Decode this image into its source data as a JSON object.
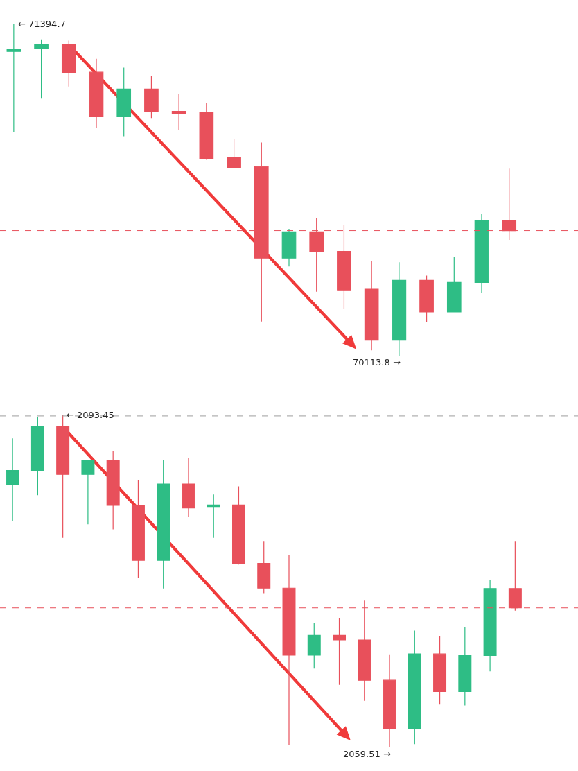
{
  "chart_data": [
    {
      "type": "candlestick",
      "categories": [
        null,
        null,
        null,
        null,
        null,
        null,
        null,
        null,
        null,
        null,
        null,
        null,
        null,
        null,
        null,
        null,
        null,
        null,
        null
      ],
      "ohlc": [
        [
          71288,
          71394.7,
          70976,
          71296
        ],
        [
          71299,
          71335,
          71106,
          71314
        ],
        [
          71314,
          71330,
          71153,
          71205
        ],
        [
          71208,
          71260,
          70992,
          71036
        ],
        [
          71036,
          71226,
          70961,
          71143
        ],
        [
          71143,
          71195,
          71031,
          71057
        ],
        [
          71057,
          71124,
          70984,
          71049
        ],
        [
          71052,
          71091,
          70870,
          70875
        ],
        [
          70878,
          70950,
          70841,
          70841
        ],
        [
          70844,
          70937,
          70246,
          70491
        ],
        [
          70491,
          70602,
          70459,
          70592
        ],
        [
          70592,
          70644,
          70361,
          70517
        ],
        [
          70517,
          70620,
          70296,
          70368
        ],
        [
          70371,
          70478,
          70135,
          70174
        ],
        [
          70174,
          70475,
          70113.8,
          70405
        ],
        [
          70405,
          70423,
          70244,
          70283
        ],
        [
          70283,
          70496,
          70283,
          70397
        ],
        [
          70397,
          70662,
          70358,
          70636
        ],
        [
          70636,
          70836,
          70561,
          70597
        ]
      ],
      "colors": [
        "#2ebd85",
        "#2ebd85",
        "#e8505b",
        "#e8505b",
        "#2ebd85",
        "#e8505b",
        "#e8505b",
        "#e8505b",
        "#e8505b",
        "#e8505b",
        "#2ebd85",
        "#e8505b",
        "#e8505b",
        "#e8505b",
        "#2ebd85",
        "#e8505b",
        "#2ebd85",
        "#2ebd85",
        "#e8505b"
      ],
      "annotations": [
        "← 71394.7",
        "70113.8 →"
      ],
      "ref_lines": [
        {
          "axis": "y",
          "value": 70597,
          "color": "#e8505b",
          "line_style": "dashed"
        }
      ],
      "tick_labels": false
    },
    {
      "type": "candlestick",
      "categories": [
        null,
        null,
        null,
        null,
        null,
        null,
        null,
        null,
        null,
        null,
        null,
        null,
        null,
        null,
        null,
        null,
        null,
        null,
        null,
        null,
        null
      ],
      "ohlc": [
        [
          2086.33,
          2091.08,
          2082.65,
          2087.79
        ],
        [
          2087.79,
          2093.25,
          2085.26,
          2092.26
        ],
        [
          2092.26,
          2093.45,
          2080.91,
          2087.4
        ],
        [
          2087.4,
          2088.78,
          2082.29,
          2088.78
        ],
        [
          2088.78,
          2089.77,
          2081.78,
          2084.23
        ],
        [
          2084.23,
          2086.84,
          2076.84,
          2078.62
        ],
        [
          2078.62,
          2088.9,
          2075.73,
          2086.41
        ],
        [
          2086.41,
          2089.1,
          2083.09,
          2083.96
        ],
        [
          2084.11,
          2085.34,
          2080.91,
          2084.27
        ],
        [
          2084.27,
          2086.17,
          2078.18,
          2078.26
        ],
        [
          2078.3,
          2080.59,
          2075.25,
          2075.77
        ],
        [
          2075.77,
          2079.13,
          2059.71,
          2068.92
        ],
        [
          2068.92,
          2072.21,
          2067.54,
          2070.94
        ],
        [
          2070.94,
          2072.68,
          2065.88,
          2070.47
        ],
        [
          2070.47,
          2074.5,
          2064.26,
          2066.35
        ],
        [
          2066.35,
          2069.0,
          2059.51,
          2061.37
        ],
        [
          2061.37,
          2071.42,
          2059.83,
          2069.04
        ],
        [
          2069.04,
          2070.82,
          2063.86,
          2065.2
        ],
        [
          2065.2,
          2071.81,
          2063.78,
          2068.88
        ],
        [
          2068.88,
          2076.56,
          2067.26,
          2075.73
        ],
        [
          2075.73,
          2080.59,
          2073.47,
          2073.75
        ]
      ],
      "colors": [
        "#2ebd85",
        "#2ebd85",
        "#e8505b",
        "#2ebd85",
        "#e8505b",
        "#e8505b",
        "#2ebd85",
        "#e8505b",
        "#2ebd85",
        "#e8505b",
        "#e8505b",
        "#e8505b",
        "#2ebd85",
        "#e8505b",
        "#e8505b",
        "#e8505b",
        "#2ebd85",
        "#e8505b",
        "#2ebd85",
        "#2ebd85",
        "#e8505b"
      ],
      "annotations": [
        "← 2093.45",
        "2059.51 →"
      ],
      "ref_lines": [
        {
          "axis": "y",
          "value": 2073.75,
          "color": "#e8505b",
          "line_style": "dashed"
        },
        {
          "axis": "y",
          "value": 2093.37,
          "color": "#9e9e9e",
          "line_style": "dashed"
        }
      ],
      "tick_labels": false
    }
  ]
}
